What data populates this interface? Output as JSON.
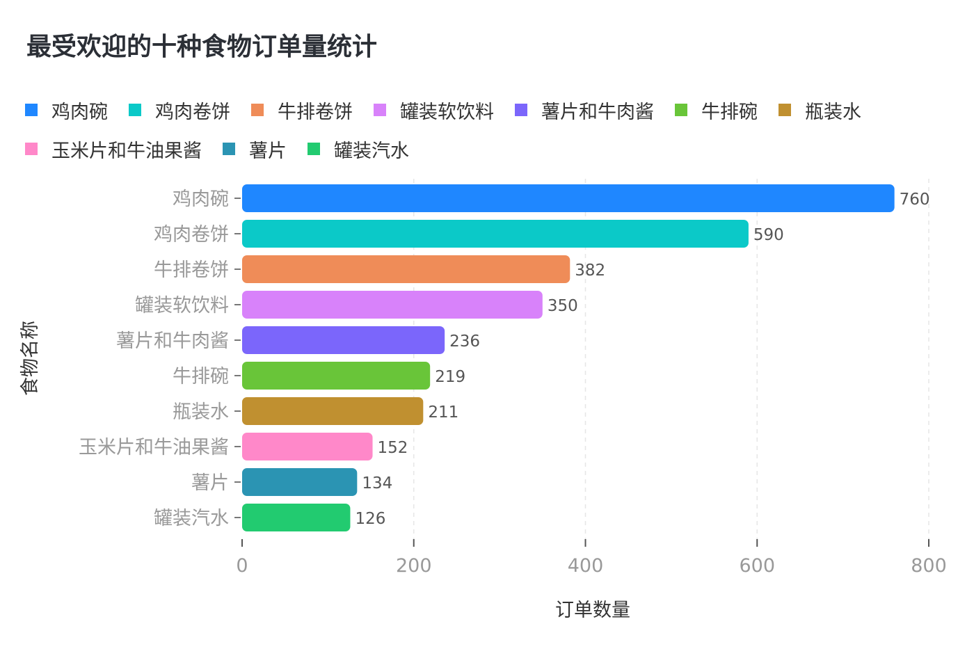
{
  "chart_data": {
    "type": "bar",
    "orientation": "horizontal",
    "title": "最受欢迎的十种食物订单量统计",
    "xlabel": "订单数量",
    "ylabel": "食物名称",
    "xlim": [
      0,
      800
    ],
    "xticks": [
      "0",
      "200",
      "400",
      "600",
      "800"
    ],
    "grid": "vertical dashed",
    "legend_position": "top",
    "categories": [
      "鸡肉碗",
      "鸡肉卷饼",
      "牛排卷饼",
      "罐装软饮料",
      "薯片和牛肉酱",
      "牛排碗",
      "瓶装水",
      "玉米片和牛油果酱",
      "薯片",
      "罐装汽水"
    ],
    "values": [
      760,
      590,
      382,
      350,
      236,
      219,
      211,
      152,
      134,
      126
    ],
    "colors": [
      "#1f87ff",
      "#0bc9c8",
      "#ef8c58",
      "#d882fa",
      "#7b66fb",
      "#69c539",
      "#c09030",
      "#ff88c9",
      "#2b94b3",
      "#22cb70"
    ]
  }
}
